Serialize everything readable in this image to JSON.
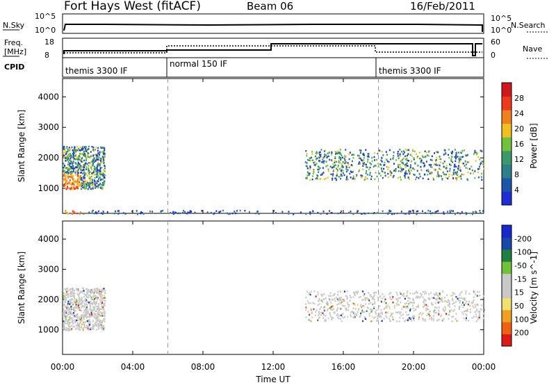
{
  "header": {
    "station": "Fort Hays West (fitACF)",
    "beam": "Beam 06",
    "date": "16/Feb/2011"
  },
  "summary": {
    "left_labels": {
      "nsky": "N.Sky",
      "freq": "Freq.",
      "freq_unit": "[MHz]",
      "cpid": "CPID"
    },
    "right_labels": {
      "nsearch": "N.Search",
      "nave": "Nave"
    },
    "noise_ticks_left": [
      "10^5",
      "10^0"
    ],
    "noise_ticks_right": [
      "10^5",
      "10^0"
    ],
    "freq_ticks": [
      "18",
      "8"
    ],
    "nave_ticks": [
      "60",
      "0"
    ],
    "cpid_segments": [
      {
        "label": "themis 3300 IF",
        "start_hour": 0
      },
      {
        "label": "normal 150 IF",
        "start_hour": 6
      },
      {
        "label": "themis 3300 IF",
        "start_hour": 18
      }
    ]
  },
  "colors": {
    "power_scale": [
      "#1f2fd8",
      "#1f55a8",
      "#2e7f8a",
      "#3a9a6a",
      "#6fc23a",
      "#f0c020",
      "#f08020",
      "#ee3a1a",
      "#d0181e"
    ],
    "velocity_scale": [
      "#e01818",
      "#f06010",
      "#f0a020",
      "#f0e070",
      "#c8c8c8",
      "#c8c8c8",
      "#6fc23a",
      "#208040",
      "#1848a8",
      "#1828d0"
    ]
  },
  "chart_data": [
    {
      "type": "heatmap",
      "title": "",
      "xlabel": "Time UT",
      "ylabel": "Slant Range [km]",
      "xlim": [
        "00:00",
        "24:00"
      ],
      "ylim": [
        180,
        4600
      ],
      "x_ticks": [
        "00:00",
        "04:00",
        "08:00",
        "12:00",
        "16:00",
        "20:00",
        "00:00"
      ],
      "y_ticks": [
        1000,
        2000,
        3000,
        4000
      ],
      "colorbar": {
        "label": "Power [dB]",
        "ticks": [
          4,
          8,
          12,
          16,
          20,
          24,
          28
        ],
        "range": [
          0,
          30
        ]
      },
      "echo_regions": [
        {
          "t_start": 0.0,
          "t_end": 2.4,
          "range_low": 1000,
          "range_high": 2400,
          "level": "mixed"
        },
        {
          "t_start": 13.8,
          "t_end": 24.0,
          "range_low": 1300,
          "range_high": 2300,
          "level": "mixed"
        },
        {
          "t_start": 0.0,
          "t_end": 24.0,
          "range_low": 180,
          "range_high": 300,
          "level": "ground"
        }
      ]
    },
    {
      "type": "heatmap",
      "title": "",
      "xlabel": "Time UT",
      "ylabel": "Slant Range [km]",
      "xlim": [
        "00:00",
        "24:00"
      ],
      "ylim": [
        180,
        4600
      ],
      "x_ticks": [
        "00:00",
        "04:00",
        "08:00",
        "12:00",
        "16:00",
        "20:00",
        "00:00"
      ],
      "y_ticks": [
        1000,
        2000,
        3000,
        4000
      ],
      "colorbar": {
        "label": "Velocity [m s^-1]",
        "ticks": [
          200,
          100,
          50,
          15,
          -15,
          -50,
          -100,
          -200
        ]
      },
      "echo_regions": [
        {
          "t_start": 0.0,
          "t_end": 2.4,
          "range_low": 1000,
          "range_high": 2400,
          "level": "low velocity"
        },
        {
          "t_start": 13.8,
          "t_end": 24.0,
          "range_low": 1300,
          "range_high": 2300,
          "level": "low velocity"
        }
      ]
    }
  ]
}
